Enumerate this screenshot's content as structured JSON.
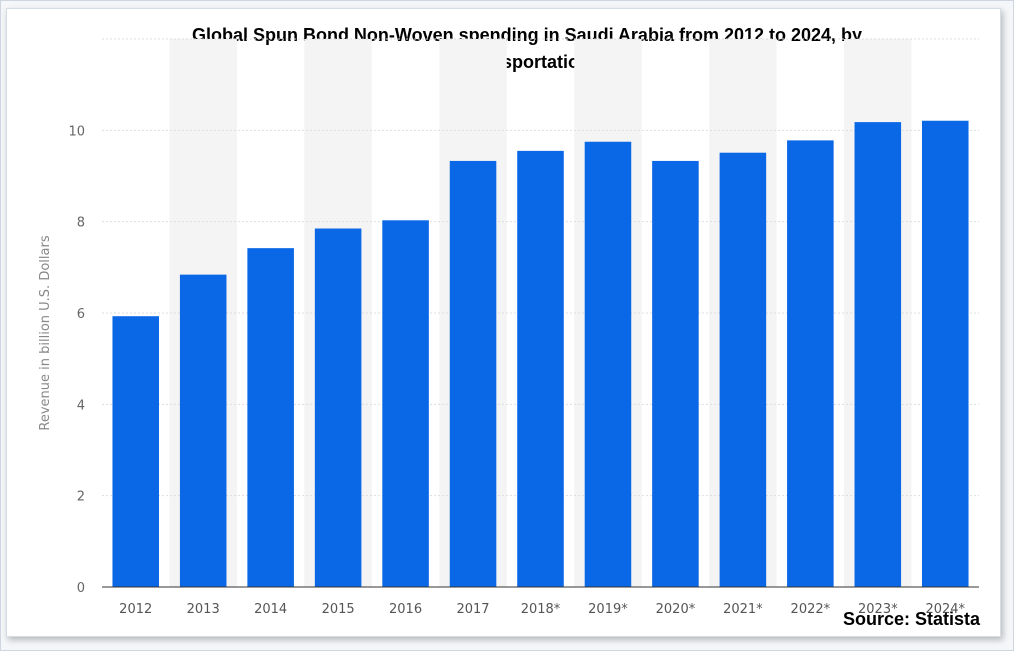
{
  "chart_data": {
    "type": "bar",
    "title": "Global Spun Bond Non-Woven spending in Saudi Arabia from 2012 to 2024, by Transportation",
    "xlabel": "",
    "ylabel": "Revenue in billion U.S. Dollars",
    "categories": [
      "2012",
      "2013",
      "2014",
      "2015",
      "2016",
      "2017",
      "2018*",
      "2019*",
      "2020*",
      "2021*",
      "2022*",
      "2023*",
      "2024*"
    ],
    "values": [
      5.93,
      6.84,
      7.42,
      7.85,
      8.03,
      9.33,
      9.55,
      9.75,
      9.33,
      9.51,
      9.78,
      10.18,
      10.21
    ],
    "ylim": [
      0,
      12
    ],
    "yticks": [
      0,
      2,
      4,
      6,
      8,
      10
    ],
    "grid": true,
    "bar_color": "#0a67e6",
    "alternating_band_color": "#f4f4f4"
  },
  "source": "Source: Statista"
}
